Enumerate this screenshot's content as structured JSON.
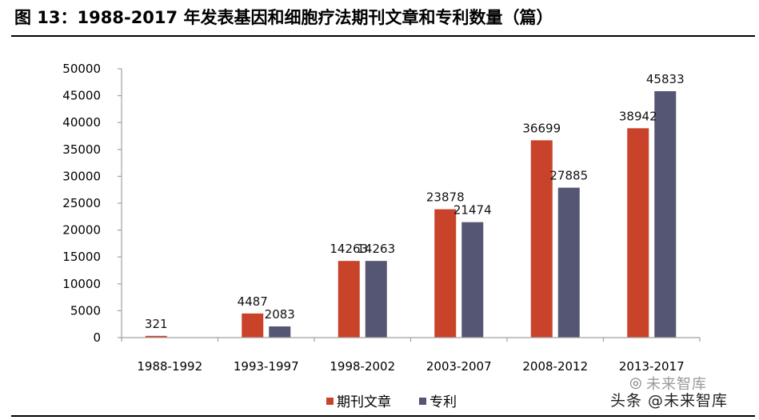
{
  "figure_title": "图 13：1988-2017 年发表基因和细胞疗法期刊文章和专利数量（篇）",
  "watermark": {
    "top_text": "未来智库",
    "bottom_text": "头条 @未来智库"
  },
  "colors": {
    "journal": "#c8432a",
    "patent": "#555574",
    "axis": "#a0a0a0"
  },
  "chart_data": {
    "type": "bar",
    "categories": [
      "1988-1992",
      "1993-1997",
      "1998-2002",
      "2003-2007",
      "2008-2012",
      "2013-2017"
    ],
    "series": [
      {
        "name": "期刊文章",
        "values": [
          321,
          4487,
          14263,
          23878,
          36699,
          38942
        ],
        "labels": [
          "321",
          "4487",
          "14263",
          "23878",
          "36699",
          "38942"
        ]
      },
      {
        "name": "专利",
        "values": [
          0,
          2083,
          14263,
          21474,
          27885,
          45833
        ],
        "labels": [
          "",
          "2083",
          "14263",
          "21474",
          "27885",
          "45833"
        ]
      }
    ],
    "yticks": [
      "0",
      "5000",
      "10000",
      "15000",
      "20000",
      "25000",
      "30000",
      "35000",
      "40000",
      "45000",
      "50000"
    ],
    "ylim": [
      0,
      50000
    ],
    "xlabel": "",
    "ylabel": "",
    "grid": false,
    "legend_position": "bottom"
  }
}
